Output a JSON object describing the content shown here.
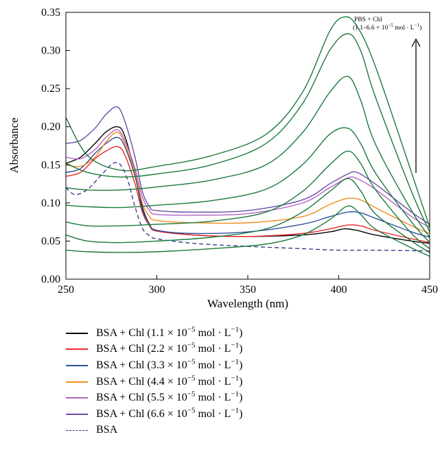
{
  "chart_data": {
    "type": "line",
    "xlabel": "Wavelength (nm)",
    "ylabel": "Absorbance",
    "xlim": [
      250,
      450
    ],
    "ylim": [
      0,
      0.35
    ],
    "xticks": [
      "250",
      "300",
      "350",
      "400",
      "450"
    ],
    "yticks": [
      "0.00",
      "0.05",
      "0.10",
      "0.15",
      "0.20",
      "0.25",
      "0.30",
      "0.35"
    ],
    "annotation_line1": "PBS + Chl",
    "annotation_line2": "(1.1–6.6 × 10",
    "annotation_sup1": "−5",
    "annotation_mid": " mol · L",
    "annotation_sup2": "−1",
    "annotation_end": ")",
    "grid": false,
    "series": [
      {
        "name": "BSA + Chl (1.1 × 10⁻⁵ mol · L⁻¹)",
        "color": "#000000",
        "dashed": false,
        "x": [
          250,
          258,
          266,
          272,
          278,
          282,
          288,
          292,
          296,
          300,
          320,
          350,
          380,
          395,
          403,
          410,
          420,
          440,
          450
        ],
        "y": [
          0.152,
          0.16,
          0.178,
          0.193,
          0.2,
          0.19,
          0.14,
          0.095,
          0.072,
          0.064,
          0.058,
          0.056,
          0.058,
          0.062,
          0.066,
          0.064,
          0.058,
          0.05,
          0.047
        ]
      },
      {
        "name": "BSA + Chl (2.2 × 10⁻⁵ mol · L⁻¹)",
        "color": "#e8262a",
        "dashed": false,
        "x": [
          250,
          258,
          266,
          272,
          278,
          282,
          288,
          292,
          296,
          300,
          320,
          350,
          380,
          395,
          405,
          412,
          420,
          440,
          450
        ],
        "y": [
          0.135,
          0.14,
          0.158,
          0.168,
          0.174,
          0.165,
          0.125,
          0.088,
          0.07,
          0.063,
          0.058,
          0.056,
          0.06,
          0.066,
          0.071,
          0.07,
          0.064,
          0.053,
          0.048
        ]
      },
      {
        "name": "BSA + Chl (3.3 × 10⁻⁵ mol · L⁻¹)",
        "color": "#2e4d9c",
        "dashed": false,
        "x": [
          250,
          258,
          266,
          272,
          278,
          282,
          288,
          292,
          296,
          300,
          320,
          350,
          380,
          395,
          405,
          412,
          420,
          440,
          450
        ],
        "y": [
          0.14,
          0.145,
          0.165,
          0.178,
          0.186,
          0.176,
          0.135,
          0.092,
          0.072,
          0.064,
          0.06,
          0.062,
          0.072,
          0.082,
          0.088,
          0.087,
          0.08,
          0.062,
          0.055
        ]
      },
      {
        "name": "BSA + Chl (4.4 × 10⁻⁵ mol · L⁻¹)",
        "color": "#f28c1e",
        "dashed": false,
        "x": [
          250,
          258,
          266,
          272,
          278,
          282,
          288,
          292,
          296,
          300,
          320,
          350,
          380,
          395,
          405,
          412,
          420,
          440,
          450
        ],
        "y": [
          0.15,
          0.148,
          0.16,
          0.18,
          0.193,
          0.18,
          0.14,
          0.1,
          0.082,
          0.077,
          0.074,
          0.074,
          0.082,
          0.098,
          0.106,
          0.104,
          0.094,
          0.07,
          0.06
        ]
      },
      {
        "name": "BSA + Chl (5.5 × 10⁻⁵ mol · L⁻¹)",
        "color": "#b562c8",
        "dashed": false,
        "x": [
          250,
          258,
          266,
          272,
          278,
          282,
          288,
          292,
          296,
          300,
          320,
          350,
          380,
          395,
          405,
          410,
          420,
          440,
          450
        ],
        "y": [
          0.16,
          0.158,
          0.17,
          0.186,
          0.196,
          0.184,
          0.145,
          0.108,
          0.09,
          0.085,
          0.084,
          0.086,
          0.1,
          0.12,
          0.133,
          0.132,
          0.118,
          0.082,
          0.068
        ]
      },
      {
        "name": "BSA + Chl (6.6 × 10⁻⁵ mol · L⁻¹)",
        "color": "#6a4aa8",
        "dashed": false,
        "x": [
          250,
          258,
          266,
          272,
          278,
          282,
          288,
          292,
          296,
          300,
          320,
          350,
          380,
          395,
          405,
          410,
          420,
          440,
          450
        ],
        "y": [
          0.178,
          0.182,
          0.198,
          0.216,
          0.226,
          0.21,
          0.16,
          0.115,
          0.095,
          0.09,
          0.088,
          0.09,
          0.104,
          0.125,
          0.138,
          0.14,
          0.125,
          0.088,
          0.072
        ]
      },
      {
        "name": "BSA",
        "color": "#2b2f80",
        "dashed": true,
        "x": [
          250,
          255,
          262,
          270,
          276,
          280,
          284,
          288,
          292,
          296,
          300,
          320,
          350,
          380,
          400,
          420,
          450
        ],
        "y": [
          0.12,
          0.111,
          0.118,
          0.138,
          0.152,
          0.15,
          0.13,
          0.095,
          0.067,
          0.057,
          0.053,
          0.047,
          0.043,
          0.04,
          0.038,
          0.038,
          0.037
        ]
      },
      {
        "name": "",
        "color": "#1a7a3a",
        "dashed": false,
        "x": [
          250,
          262,
          280,
          300,
          330,
          360,
          380,
          395,
          405,
          412,
          420,
          440,
          450
        ],
        "y": [
          0.038,
          0.036,
          0.035,
          0.036,
          0.04,
          0.046,
          0.058,
          0.078,
          0.096,
          0.085,
          0.066,
          0.041,
          0.03
        ]
      },
      {
        "name": "",
        "color": "#1a7a3a",
        "dashed": false,
        "x": [
          250,
          262,
          280,
          300,
          330,
          360,
          380,
          395,
          405,
          412,
          420,
          440,
          450
        ],
        "y": [
          0.058,
          0.05,
          0.048,
          0.05,
          0.055,
          0.066,
          0.088,
          0.115,
          0.132,
          0.116,
          0.086,
          0.05,
          0.035
        ]
      },
      {
        "name": "",
        "color": "#1a7a3a",
        "dashed": false,
        "x": [
          250,
          262,
          280,
          300,
          330,
          360,
          380,
          395,
          405,
          412,
          420,
          440,
          450
        ],
        "y": [
          0.075,
          0.07,
          0.07,
          0.072,
          0.076,
          0.088,
          0.115,
          0.15,
          0.168,
          0.152,
          0.118,
          0.06,
          0.04
        ]
      },
      {
        "name": "",
        "color": "#1a7a3a",
        "dashed": false,
        "x": [
          250,
          262,
          280,
          300,
          330,
          360,
          380,
          395,
          405,
          412,
          420,
          440,
          450
        ],
        "y": [
          0.097,
          0.095,
          0.094,
          0.097,
          0.103,
          0.118,
          0.15,
          0.19,
          0.198,
          0.178,
          0.14,
          0.075,
          0.048
        ]
      },
      {
        "name": "",
        "color": "#1a7a3a",
        "dashed": false,
        "x": [
          250,
          262,
          280,
          300,
          330,
          360,
          380,
          395,
          405,
          412,
          420,
          440,
          450
        ],
        "y": [
          0.12,
          0.117,
          0.117,
          0.121,
          0.13,
          0.15,
          0.192,
          0.245,
          0.266,
          0.235,
          0.178,
          0.09,
          0.055
        ]
      },
      {
        "name": "",
        "color": "#1a7a3a",
        "dashed": false,
        "x": [
          250,
          262,
          280,
          300,
          330,
          360,
          380,
          395,
          405,
          412,
          420,
          440,
          450
        ],
        "y": [
          0.152,
          0.14,
          0.134,
          0.138,
          0.15,
          0.178,
          0.23,
          0.3,
          0.322,
          0.3,
          0.24,
          0.115,
          0.062
        ]
      },
      {
        "name": "",
        "color": "#1a7a3a",
        "dashed": false,
        "x": [
          250,
          262,
          280,
          300,
          330,
          360,
          380,
          395,
          403,
          410,
          420,
          440,
          450
        ],
        "y": [
          0.212,
          0.162,
          0.143,
          0.148,
          0.162,
          0.19,
          0.245,
          0.325,
          0.344,
          0.332,
          0.28,
          0.14,
          0.068
        ]
      }
    ]
  }
}
